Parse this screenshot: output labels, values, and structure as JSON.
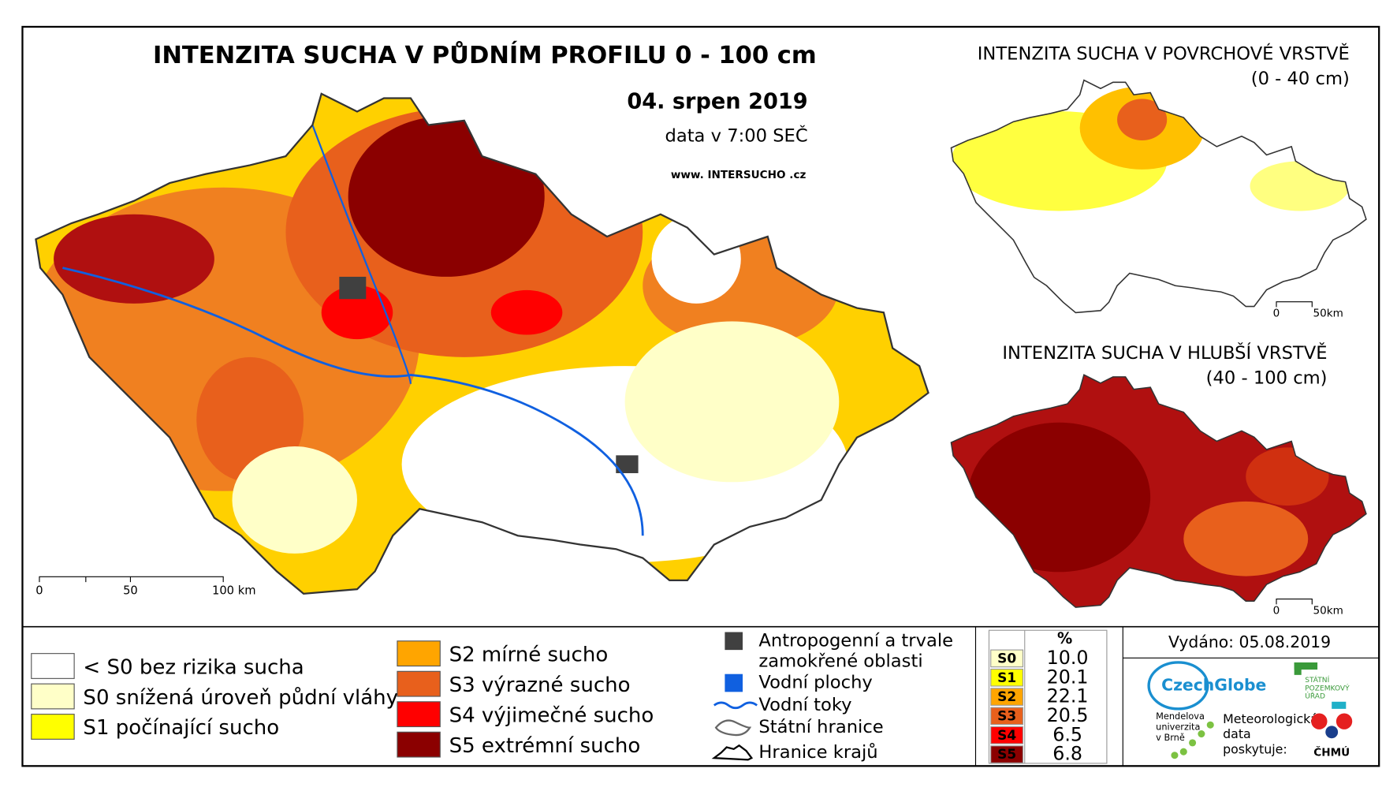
{
  "main_map": {
    "title": "INTENZITA SUCHA V PŮDNÍM PROFILU 0 - 100 cm",
    "date": "04. srpen 2019",
    "time_note": "data v 7:00 SEČ",
    "website": "www. INTERSUCHO .cz",
    "scale": [
      "0",
      "50",
      "100 km"
    ]
  },
  "inset_surface": {
    "title": "INTENZITA SUCHA V POVRCHOVÉ VRSTVĚ",
    "subtitle": "(0 - 40 cm)",
    "scale": [
      "0",
      "50km"
    ]
  },
  "inset_deep": {
    "title": "INTENZITA SUCHA V HLUBŠÍ VRSTVĚ",
    "subtitle": "(40 - 100 cm)",
    "scale": [
      "0",
      "50km"
    ]
  },
  "legend": {
    "classes": [
      {
        "label": "< S0 bez rizika sucha",
        "color": "#ffffff"
      },
      {
        "label": "S0 snížená úroveň půdní vláhy",
        "color": "#ffffc8"
      },
      {
        "label": "S1 počínající sucho",
        "color": "#ffff00"
      },
      {
        "label": "S2 mírné sucho",
        "color": "#ffa500"
      },
      {
        "label": "S3 výrazné sucho",
        "color": "#e8601c"
      },
      {
        "label": "S4 výjimečné sucho",
        "color": "#ff0000"
      },
      {
        "label": "S5 extrémní sucho",
        "color": "#8b0000"
      }
    ],
    "features": [
      {
        "label": [
          "Antropogenní a trvale",
          "zamokřené oblasti"
        ],
        "symbol": "square",
        "color": "#404040"
      },
      {
        "label": [
          "Vodní plochy"
        ],
        "symbol": "square",
        "color": "#1060e0"
      },
      {
        "label": [
          "Vodní toky"
        ],
        "symbol": "river",
        "color": "#1060e0"
      },
      {
        "label": [
          "Státní hranice"
        ],
        "symbol": "border",
        "color": "#666666"
      },
      {
        "label": [
          "Hranice krajů"
        ],
        "symbol": "region",
        "color": "#000000"
      }
    ]
  },
  "stats_table": {
    "header": "%",
    "rows": [
      {
        "class": "S0",
        "percent": "10.0",
        "color": "#ffffc8"
      },
      {
        "class": "S1",
        "percent": "20.1",
        "color": "#ffff00"
      },
      {
        "class": "S2",
        "percent": "22.1",
        "color": "#ffa500"
      },
      {
        "class": "S3",
        "percent": "20.5",
        "color": "#e8601c"
      },
      {
        "class": "S4",
        "percent": "6.5",
        "color": "#ff0000"
      },
      {
        "class": "S5",
        "percent": "6.8",
        "color": "#8b0000"
      }
    ]
  },
  "issued": "Vydáno: 05.08.2019",
  "logos": {
    "czechglobe": "CzechGlobe",
    "spu": [
      "STÁTNÍ",
      "POZEMKOVÝ",
      "ÚŘAD"
    ],
    "mendelu": [
      "Mendelova",
      "univerzita",
      "v Brně"
    ],
    "chmi_note": [
      "Meteorologická",
      "data",
      "poskytuje:"
    ],
    "chmi": "ČHMÚ"
  }
}
